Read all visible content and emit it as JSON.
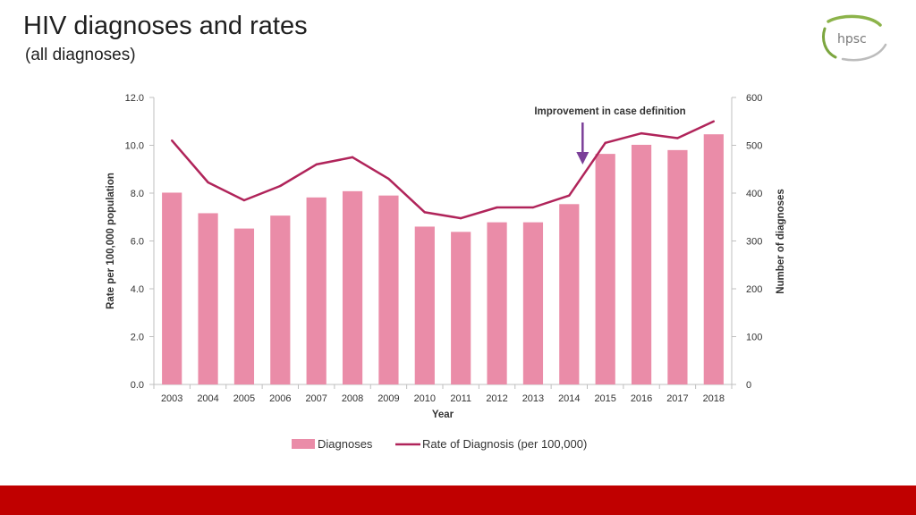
{
  "page": {
    "title": "HIV diagnoses and rates",
    "subtitle": "(all diagnoses)",
    "logo_text": "hpsc",
    "footer_color": "#c00000"
  },
  "chart_data": {
    "type": "bar",
    "categories": [
      "2003",
      "2004",
      "2005",
      "2006",
      "2007",
      "2008",
      "2009",
      "2010",
      "2011",
      "2012",
      "2013",
      "2014",
      "2015",
      "2016",
      "2017",
      "2018"
    ],
    "series": [
      {
        "name": "Diagnoses",
        "type": "bar",
        "axis": "right",
        "color": "#ea8ca8",
        "values": [
          401,
          358,
          326,
          353,
          391,
          404,
          395,
          330,
          319,
          339,
          339,
          377,
          482,
          501,
          490,
          523
        ]
      },
      {
        "name": "Rate of Diagnosis (per 100,000)",
        "type": "line",
        "axis": "left",
        "color": "#b0245a",
        "values": [
          10.2,
          8.45,
          7.7,
          8.3,
          9.2,
          9.5,
          8.6,
          7.2,
          6.95,
          7.4,
          7.4,
          7.9,
          10.1,
          10.5,
          10.3,
          11.0
        ]
      }
    ],
    "xlabel": "Year",
    "ylabel_left": "Rate per 100,000 population",
    "ylabel_right": "Number of diagnoses",
    "ylim_left": [
      0,
      12
    ],
    "ylim_right": [
      0,
      600
    ],
    "yticks_left": [
      "0.0",
      "2.0",
      "4.0",
      "6.0",
      "8.0",
      "10.0",
      "12.0"
    ],
    "yticks_right": [
      "0",
      "100",
      "200",
      "300",
      "400",
      "500",
      "600"
    ],
    "annotation": {
      "text": "Improvement in case definition",
      "target_category": "2014",
      "color": "#7b3f98"
    },
    "legend": {
      "placement": "bottom",
      "items": [
        "Diagnoses",
        "Rate of Diagnosis (per 100,000)"
      ]
    }
  }
}
